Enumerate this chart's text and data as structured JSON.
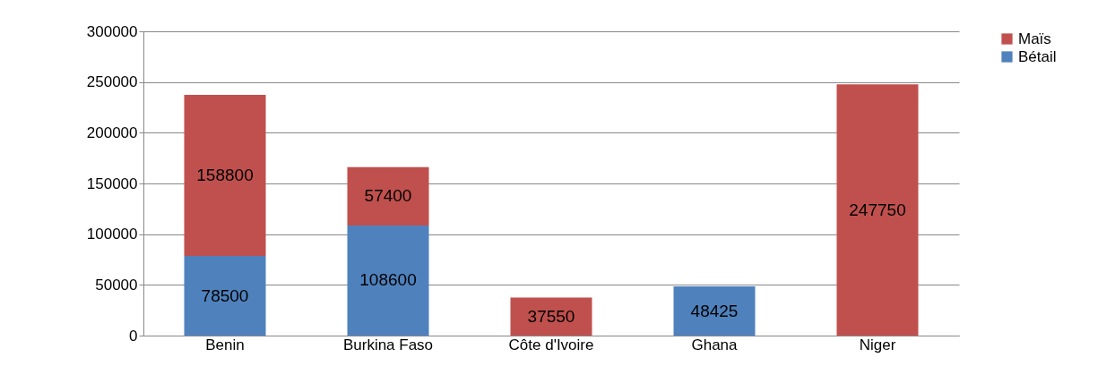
{
  "chart_data": {
    "type": "bar",
    "stacked": true,
    "categories": [
      "Benin",
      "Burkina Faso",
      "Côte d'Ivoire",
      "Ghana",
      "Niger"
    ],
    "series": [
      {
        "name": "Bétail",
        "color": "#4f81bd",
        "values": [
          78500,
          108600,
          null,
          48425,
          null
        ]
      },
      {
        "name": "Maïs",
        "color": "#c0504d",
        "values": [
          158800,
          57400,
          37550,
          null,
          247750
        ]
      }
    ],
    "ylim": [
      0,
      300000
    ],
    "yticks": [
      0,
      50000,
      100000,
      150000,
      200000,
      250000,
      300000
    ],
    "grid": "y",
    "legend": "right",
    "data_labels": true
  }
}
